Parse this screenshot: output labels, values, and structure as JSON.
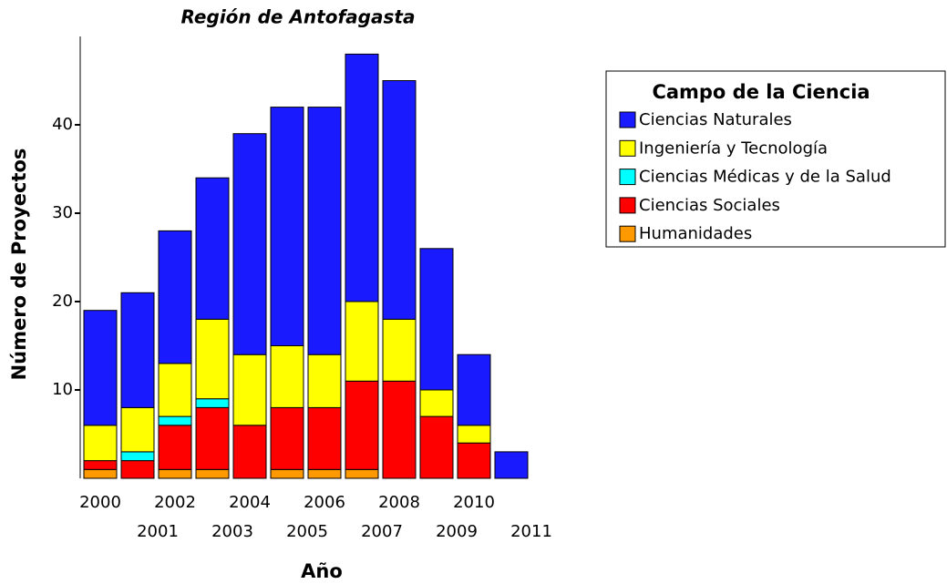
{
  "chart_data": {
    "type": "stacked_bar",
    "title": "Región de Antofagasta",
    "x_label": "Año",
    "y_label": "Número de Proyectos",
    "categories": [
      "2000",
      "2001",
      "2002",
      "2003",
      "2004",
      "2005",
      "2006",
      "2007",
      "2008",
      "2009",
      "2010",
      "2011"
    ],
    "legend_title": "Campo de la Ciencia",
    "legend": "right",
    "series": [
      {
        "name": "Ciencias Naturales",
        "color": "#1a1aff",
        "values": [
          13,
          13,
          15,
          16,
          25,
          27,
          28,
          28,
          27,
          16,
          8,
          3
        ]
      },
      {
        "name": "Ingeniería y Tecnología",
        "color": "#ffff00",
        "values": [
          4,
          5,
          6,
          9,
          8,
          7,
          6,
          9,
          7,
          3,
          2,
          0
        ]
      },
      {
        "name": "Ciencias Médicas y de la Salud",
        "color": "#00ffff",
        "values": [
          0,
          1,
          1,
          1,
          0,
          0,
          0,
          0,
          0,
          0,
          0,
          0
        ]
      },
      {
        "name": "Ciencias Sociales",
        "color": "#ff0000",
        "values": [
          1,
          2,
          5,
          7,
          6,
          7,
          7,
          10,
          11,
          7,
          4,
          0
        ]
      },
      {
        "name": "Humanidades",
        "color": "#ff9900",
        "values": [
          1,
          0,
          1,
          1,
          0,
          1,
          1,
          1,
          0,
          0,
          0,
          0
        ]
      }
    ],
    "ylim": [
      0,
      50
    ],
    "yticks": [
      10,
      20,
      30,
      40
    ]
  }
}
